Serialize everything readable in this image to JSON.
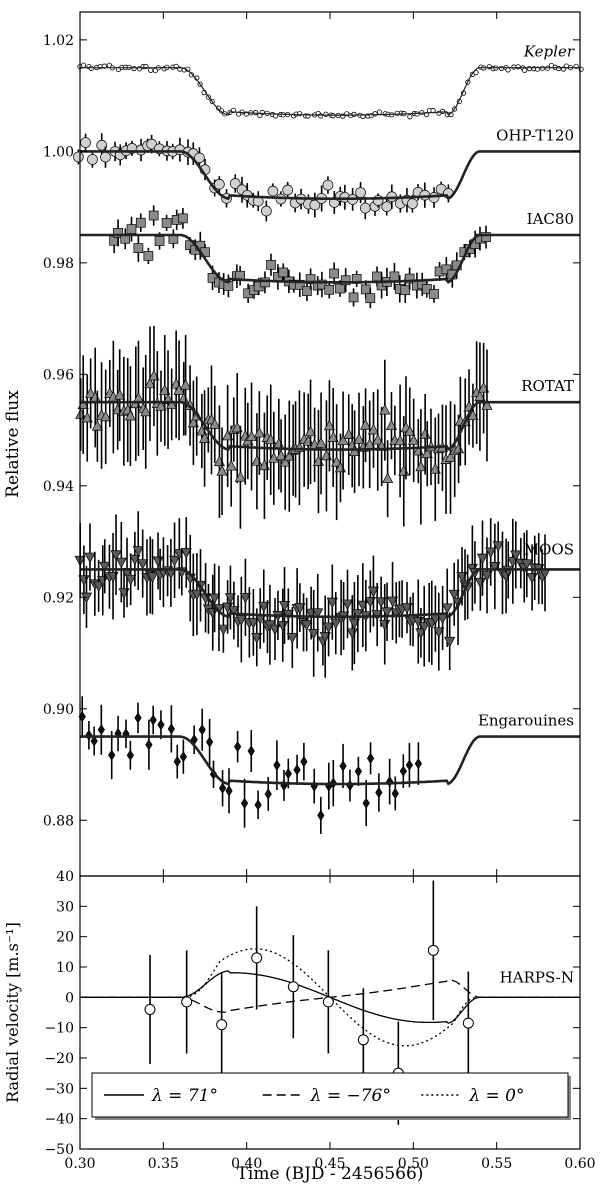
{
  "chart_data": [
    {
      "type": "line",
      "panel": "top",
      "xlim": [
        0.3,
        0.6
      ],
      "ylim": [
        0.87,
        1.025
      ],
      "ylabel": "Relative flux",
      "y_ticks": [
        0.88,
        0.9,
        0.92,
        0.94,
        0.96,
        0.98,
        1.0,
        1.02
      ],
      "y_tick_labels": [
        "0.88",
        "0.90",
        "0.92",
        "0.94",
        "0.96",
        "0.98",
        "1.00",
        "1.02"
      ],
      "grid": false,
      "series": [
        {
          "name": "Kepler",
          "label_style": "italic",
          "marker": "small-open-circle",
          "baseline": 1.015,
          "depth": 0.0085,
          "obs_range": [
            0.3,
            0.6
          ],
          "obs_step": 0.0025,
          "scatter": 0.0004,
          "err": 0,
          "fill": "#ffffff"
        },
        {
          "name": "OHP-T120",
          "marker": "circle",
          "baseline": 1.0,
          "depth": 0.0085,
          "obs_range": [
            0.3,
            0.52
          ],
          "obs_step": 0.004,
          "scatter": 0.0022,
          "err": 0.0018,
          "fill": "#d0d0d0"
        },
        {
          "name": "IAC80",
          "marker": "square",
          "baseline": 0.985,
          "depth": 0.0085,
          "obs_range": [
            0.32,
            0.545
          ],
          "obs_step": 0.0035,
          "scatter": 0.003,
          "err": 0.002,
          "fill": "#8a8a8a"
        },
        {
          "name": "ROTAT",
          "marker": "triangle-up",
          "baseline": 0.955,
          "depth": 0.0085,
          "obs_range": [
            0.3,
            0.545
          ],
          "obs_step": 0.0022,
          "scatter": 0.0055,
          "err": 0.008,
          "fill": "#8a8a8a"
        },
        {
          "name": "MOOS",
          "marker": "triangle-down",
          "baseline": 0.925,
          "depth": 0.0085,
          "obs_range": [
            0.3,
            0.58
          ],
          "obs_step": 0.0022,
          "scatter": 0.004,
          "err": 0.006,
          "fill": "#5a5a5a"
        },
        {
          "name": "Engarouines",
          "marker": "diamond",
          "baseline": 0.895,
          "depth": 0.0085,
          "obs_range": [
            0.3,
            0.505
          ],
          "obs_step": 0.0045,
          "scatter": 0.005,
          "err": 0.0035,
          "fill": "#111111"
        }
      ],
      "transit_model": {
        "t1": 0.36,
        "t2": 0.39,
        "t3": 0.52,
        "t4": 0.54
      }
    },
    {
      "type": "line",
      "panel": "bottom",
      "xlim": [
        0.3,
        0.6
      ],
      "ylim": [
        -50,
        40
      ],
      "xlabel": "Time (BJD - 2456566)",
      "ylabel": "Radial velocity [m.s⁻¹]",
      "x_ticks": [
        0.3,
        0.35,
        0.4,
        0.45,
        0.5,
        0.55,
        0.6
      ],
      "x_tick_labels": [
        "0.30",
        "0.35",
        "0.40",
        "0.45",
        "0.50",
        "0.55",
        "0.60"
      ],
      "y_ticks": [
        -50,
        -40,
        -30,
        -20,
        -10,
        0,
        10,
        20,
        30
      ],
      "y_tick_labels": [
        "−50",
        "−40",
        "−30",
        "−20",
        "−10",
        "0",
        "10",
        "20",
        "30"
      ],
      "top_tick_label": "40",
      "instrument": "HARPS-N",
      "observations": {
        "x": [
          0.342,
          0.364,
          0.385,
          0.406,
          0.428,
          0.449,
          0.47,
          0.491,
          0.512,
          0.533
        ],
        "y": [
          -4,
          -1.5,
          -9,
          13,
          3.5,
          -1.5,
          -14,
          -25,
          15.5,
          -8.5
        ],
        "err": [
          18,
          17,
          17,
          17,
          17,
          17,
          17,
          17,
          23,
          17
        ]
      },
      "models": [
        {
          "name": "λ = 71°",
          "style": "solid",
          "lambda_deg": 71,
          "amplitude": 9.5
        },
        {
          "name": "λ = −76°",
          "style": "dashed",
          "lambda_deg": -76,
          "amplitude": 9.5
        },
        {
          "name": "λ = 0°",
          "style": "dotted",
          "lambda_deg": 0,
          "amplitude": 16
        }
      ],
      "legend_position": "bottom"
    }
  ]
}
